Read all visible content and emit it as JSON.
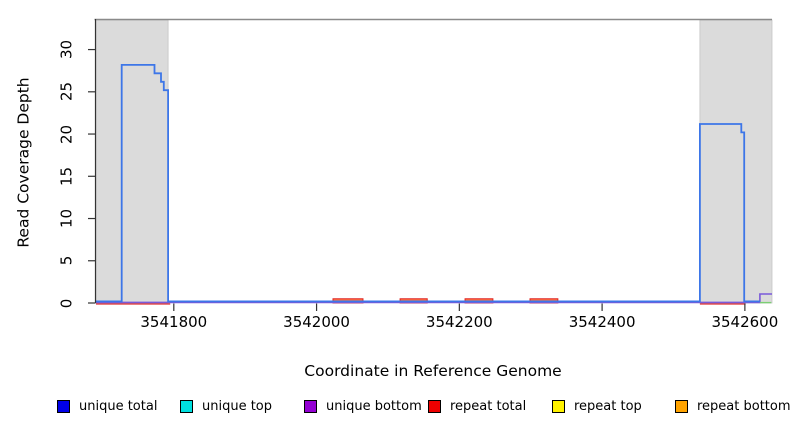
{
  "axes": {
    "x_label": "Coordinate in Reference Genome",
    "y_label": "Read Coverage Depth"
  },
  "chart_data": {
    "type": "area",
    "title": "",
    "xlabel": "Coordinate in Reference Genome",
    "ylabel": "Read Coverage Depth",
    "xlim": [
      3541691,
      3542638
    ],
    "ylim": [
      0,
      33.5
    ],
    "x_ticks": [
      3541800,
      3542000,
      3542200,
      3542400,
      3542600
    ],
    "y_ticks": [
      0,
      5,
      10,
      15,
      20,
      25,
      30
    ],
    "grid": false,
    "legend_position": "bottom",
    "colors": {
      "shade": "#DBDBDB",
      "shade_border": "#C6C6C6",
      "frame_top": "#8A8A8A",
      "axis": "#333333"
    },
    "shaded_regions": [
      [
        3541691,
        3541792
      ],
      [
        3542537,
        3542638
      ]
    ],
    "series": [
      {
        "name": "repeat total zero line",
        "role": "zero-line",
        "color": "#E03030",
        "dy": -0.9,
        "width": 1.4,
        "segments": [
          [
            3541691,
            3541795
          ],
          [
            3542537,
            3542601
          ]
        ]
      },
      {
        "name": "repeat coverage bumps",
        "role": "bump",
        "fill": "#FF7741",
        "stroke": "#E02020",
        "height": 0.5,
        "segments": [
          [
            3542023,
            3542065
          ],
          [
            3542117,
            3542155
          ],
          [
            3542208,
            3542247
          ],
          [
            3542299,
            3542338
          ]
        ]
      },
      {
        "name": "unique bottom",
        "role": "step",
        "color": "#7A5AD9",
        "dy": 0.6,
        "width": 1.6,
        "points": [
          [
            3541691,
            0
          ],
          [
            3542621,
            0
          ],
          [
            3542621,
            1
          ],
          [
            3542638,
            1
          ]
        ]
      },
      {
        "name": "overlap at zero",
        "role": "zero-line",
        "color": "#7CCE74",
        "dy": 0.4,
        "width": 1.4,
        "segments": [
          [
            3542621,
            3542637
          ]
        ]
      },
      {
        "name": "unique total",
        "role": "step",
        "color": "#3D76E8",
        "dy": 1.6,
        "width": 1.8,
        "points": [
          [
            3541691,
            0
          ],
          [
            3541727,
            0
          ],
          [
            3541727,
            28
          ],
          [
            3541773,
            28
          ],
          [
            3541773,
            27
          ],
          [
            3541782,
            27
          ],
          [
            3541782,
            26
          ],
          [
            3541786,
            26
          ],
          [
            3541786,
            25
          ],
          [
            3541792,
            25
          ],
          [
            3541792,
            0
          ],
          [
            3542537,
            0
          ],
          [
            3542537,
            21
          ],
          [
            3542595,
            21
          ],
          [
            3542595,
            20
          ],
          [
            3542599,
            20
          ],
          [
            3542599,
            0
          ],
          [
            3542621,
            0
          ]
        ]
      }
    ],
    "legend": [
      {
        "label": "unique total",
        "color": "#0000E8"
      },
      {
        "label": "unique top",
        "color": "#00E0E0"
      },
      {
        "label": "unique bottom",
        "color": "#9400D3"
      },
      {
        "label": "repeat total",
        "color": "#EE0000"
      },
      {
        "label": "repeat top",
        "color": "#FFF200"
      },
      {
        "label": "repeat bottom",
        "color": "#FFA300"
      }
    ]
  }
}
